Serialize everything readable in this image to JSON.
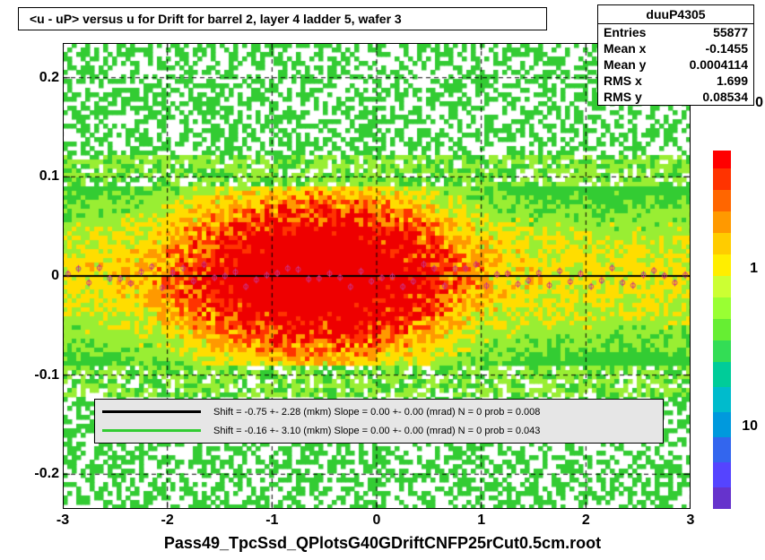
{
  "title": "<u - uP>       versus   u for Drift for barrel 2, layer 4 ladder 5, wafer 3",
  "xlabel": "Pass49_TpcSsd_QPlotsG40GDriftCNFP25rCut0.5cm.root",
  "stats": {
    "name": "duuP4305",
    "entries_label": "Entries",
    "entries": "55877",
    "meanx_label": "Mean x",
    "meanx": "-0.1455",
    "meany_label": "Mean y",
    "meany": "0.0004114",
    "rmsx_label": "RMS x",
    "rmsx": "1.699",
    "rmsy_label": "RMS y",
    "rmsy": "0.08534"
  },
  "axes": {
    "xlim": [
      -3,
      3
    ],
    "ylim": [
      -0.235,
      0.235
    ],
    "xticks": [
      -3,
      -2,
      -1,
      0,
      1,
      2,
      3
    ],
    "yticks": [
      -0.2,
      -0.1,
      0,
      0.1,
      0.2
    ],
    "nx": 140,
    "ny": 104
  },
  "fit_line": {
    "y": 0.0,
    "color": "#000000",
    "width": 2
  },
  "markers": {
    "count": 60,
    "y_center": 0.0,
    "y_jitter": 0.012,
    "color": "#cc3388",
    "size": 5
  },
  "legend": {
    "rows": [
      {
        "color": "#000000",
        "text": "Shift =    -0.75 +- 2.28 (mkm) Slope =     0.00 +- 0.00 (mrad)  N = 0 prob = 0.008"
      },
      {
        "color": "#33cc33",
        "text": "Shift =    -0.16 +- 3.10 (mkm) Slope =     0.00 +- 0.00 (mrad)  N = 0 prob = 0.043"
      }
    ]
  },
  "colorbar": {
    "ticks": [
      "1",
      "10"
    ],
    "tick_positions": [
      0.33,
      0.77
    ],
    "extra_zero": "0",
    "segments": [
      {
        "color": "#ff0000",
        "h": 0.05
      },
      {
        "color": "#ff3300",
        "h": 0.06
      },
      {
        "color": "#ff6600",
        "h": 0.06
      },
      {
        "color": "#ff9900",
        "h": 0.06
      },
      {
        "color": "#ffcc00",
        "h": 0.06
      },
      {
        "color": "#ffee00",
        "h": 0.06
      },
      {
        "color": "#ccff33",
        "h": 0.06
      },
      {
        "color": "#99ff33",
        "h": 0.06
      },
      {
        "color": "#66ee33",
        "h": 0.06
      },
      {
        "color": "#33dd55",
        "h": 0.06
      },
      {
        "color": "#00cc99",
        "h": 0.07
      },
      {
        "color": "#00bbcc",
        "h": 0.07
      },
      {
        "color": "#0099dd",
        "h": 0.07
      },
      {
        "color": "#3366ee",
        "h": 0.07
      },
      {
        "color": "#5544ff",
        "h": 0.07
      },
      {
        "color": "#6633cc",
        "h": 0.06
      }
    ]
  },
  "palette": {
    "low": "#33cc33",
    "mid1": "#99ee33",
    "mid2": "#ffdd00",
    "mid3": "#ff9900",
    "high": "#ff3300",
    "peak": "#ee0000",
    "bg": "#ffffff",
    "grid": "#000000"
  },
  "density": {
    "sigma_y": 0.055,
    "x_hotspots": [
      -1.2,
      -0.5,
      0.0
    ],
    "hotspot_sigma_x": 0.6,
    "base": 0.35
  }
}
